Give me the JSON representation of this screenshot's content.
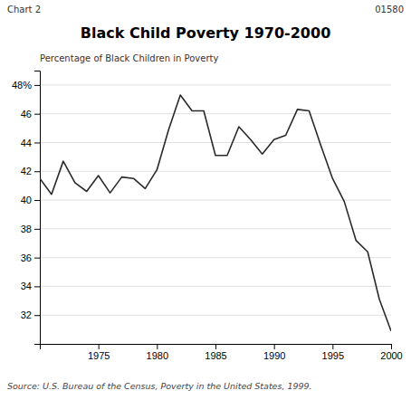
{
  "chart_data": {
    "type": "line",
    "title": "Black Child Poverty 1970-2000",
    "ylabel": "Percentage of Black Children in Poverty",
    "annotations": [
      "Chart 2",
      "01580",
      "Source: U.S. Bureau of the Census, Poverty in the United States, 1999."
    ],
    "x": [
      1970,
      1971,
      1972,
      1973,
      1974,
      1975,
      1976,
      1977,
      1978,
      1979,
      1980,
      1981,
      1982,
      1983,
      1984,
      1985,
      1986,
      1987,
      1988,
      1989,
      1990,
      1991,
      1992,
      1993,
      1994,
      1995,
      1996,
      1997,
      1998,
      1999,
      2000
    ],
    "values": [
      41.5,
      40.4,
      42.7,
      41.2,
      40.6,
      41.7,
      40.5,
      41.6,
      41.5,
      40.8,
      42.1,
      44.9,
      47.3,
      46.2,
      46.2,
      43.1,
      43.1,
      45.1,
      44.2,
      43.2,
      44.2,
      44.5,
      46.3,
      46.2,
      43.8,
      41.5,
      39.9,
      37.2,
      36.4,
      33.1,
      30.9
    ],
    "color": "#2a2a2a",
    "xlim": [
      1970,
      2000
    ],
    "xticks": [
      1975,
      1980,
      1985,
      1990,
      1995,
      2000
    ],
    "ylim": [
      30,
      49
    ],
    "yticks": [
      32,
      34,
      36,
      38,
      40,
      42,
      44,
      46,
      {
        "value": 48,
        "label": "48%"
      }
    ],
    "grid": true
  }
}
